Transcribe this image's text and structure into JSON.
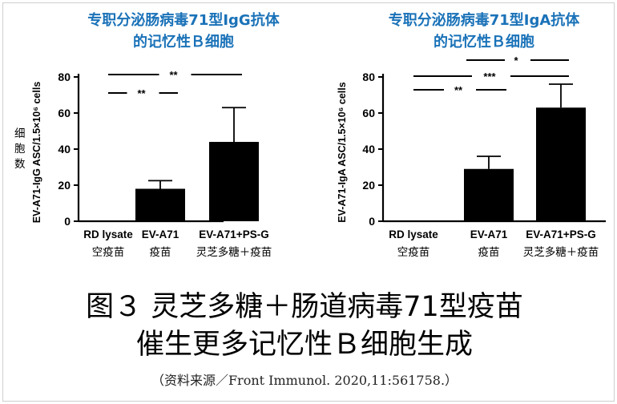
{
  "side_label": [
    "细",
    "胞",
    "数"
  ],
  "caption_line1": "图３ 灵芝多糖＋肠道病毒71型疫苗",
  "caption_line2": "催生更多记忆性Ｂ细胞生成",
  "source": "（资料来源／Front Immunol. 2020,11:561758.）",
  "chart_data": [
    {
      "type": "bar",
      "title": [
        "专职分泌肠病毒71型IgG抗体",
        "的记忆性Ｂ细胞"
      ],
      "ylabel": "EV-A71-IgG ASC/1.5×10⁶ cells",
      "categories": [
        "RD lysate",
        "EV-A71",
        "EV-A71+PS-G"
      ],
      "categories_cn": [
        "空疫苗",
        "疫苗",
        "灵芝多糖＋疫苗"
      ],
      "values": [
        0,
        18,
        44
      ],
      "errors": [
        0,
        4.5,
        19
      ],
      "ylim": [
        0,
        80
      ],
      "yticks": [
        0,
        20,
        40,
        60,
        80
      ],
      "significance": [
        {
          "from": 0,
          "to": 1,
          "label": "**"
        },
        {
          "from": 0,
          "to": 2,
          "label": "**"
        }
      ]
    },
    {
      "type": "bar",
      "title": [
        "专职分泌肠病毒71型IgA抗体",
        "的记忆性Ｂ细胞"
      ],
      "ylabel": "EV-A71-IgA ASC/1.5×10⁶ cells",
      "categories": [
        "RD lysate",
        "EV-A71",
        "EV-A71+PS-G"
      ],
      "categories_cn": [
        "空疫苗",
        "疫苗",
        "灵芝多糖＋疫苗"
      ],
      "values": [
        0,
        29,
        63
      ],
      "errors": [
        0,
        7,
        13
      ],
      "ylim": [
        0,
        80
      ],
      "yticks": [
        0,
        20,
        40,
        60,
        80
      ],
      "significance": [
        {
          "from": 0,
          "to": 1,
          "label": "**"
        },
        {
          "from": 0,
          "to": 2,
          "label": "***"
        },
        {
          "from": 1,
          "to": 2,
          "label": "*"
        }
      ]
    }
  ]
}
